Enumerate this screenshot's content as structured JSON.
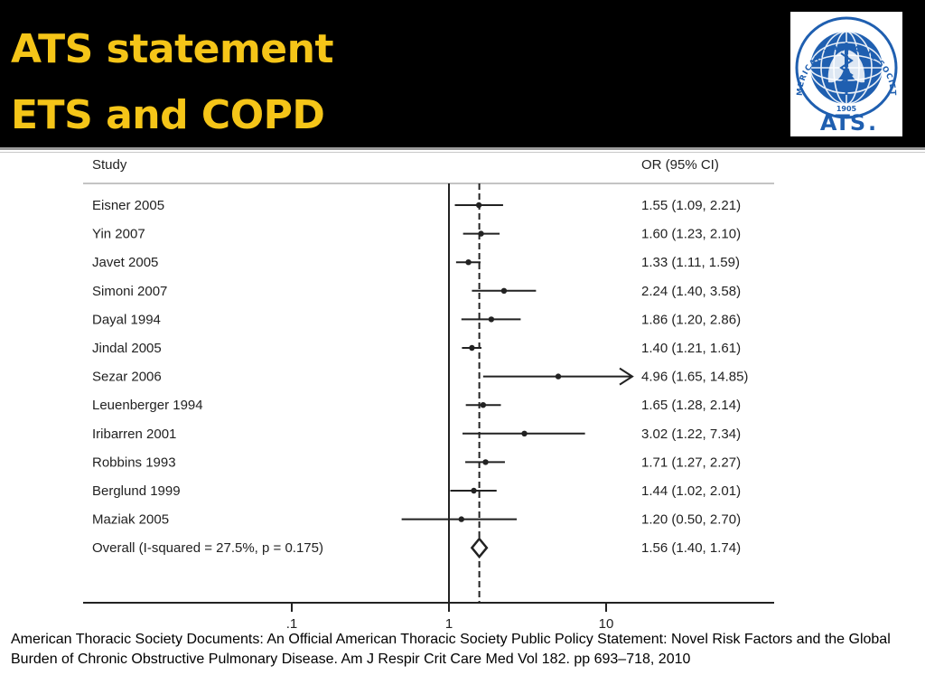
{
  "slide": {
    "title_line1": "ATS statement",
    "title_line2": "ETS and COPD",
    "citation": "American Thoracic Society Documents: An Official American Thoracic Society Public Policy Statement: Novel Risk Factors and the Global Burden of Chronic Obstructive Pulmonary Disease. Am J Respir Crit Care Med Vol 182. pp 693–718, 2010"
  },
  "logo": {
    "ring_text": "AMERICAN THORACIC SOCIETY",
    "year": "1905",
    "abbr": "ATS",
    "mark": ".",
    "color": "#1f5fb0"
  },
  "colors": {
    "header_bg": "#000000",
    "title": "#f5c518",
    "plot_ink": "#222222"
  },
  "chart_data": {
    "type": "forest",
    "column_headers": {
      "study": "Study",
      "estimate": "OR (95% CI)"
    },
    "x_scale": "log",
    "x_ticks": [
      {
        "value": 0.1,
        "label": ".1"
      },
      {
        "value": 1,
        "label": "1"
      },
      {
        "value": 10,
        "label": "10"
      }
    ],
    "null_line": 1,
    "pooled_line": 1.56,
    "studies": [
      {
        "study": "Eisner 2005",
        "or": 1.55,
        "lo": 1.09,
        "hi": 2.21,
        "label": "1.55 (1.09, 2.21)"
      },
      {
        "study": "Yin 2007",
        "or": 1.6,
        "lo": 1.23,
        "hi": 2.1,
        "label": "1.60 (1.23, 2.10)"
      },
      {
        "study": "Javet 2005",
        "or": 1.33,
        "lo": 1.11,
        "hi": 1.59,
        "label": "1.33 (1.11, 1.59)"
      },
      {
        "study": "Simoni 2007",
        "or": 2.24,
        "lo": 1.4,
        "hi": 3.58,
        "label": "2.24 (1.40, 3.58)"
      },
      {
        "study": "Dayal 1994",
        "or": 1.86,
        "lo": 1.2,
        "hi": 2.86,
        "label": "1.86 (1.20, 2.86)"
      },
      {
        "study": "Jindal 2005",
        "or": 1.4,
        "lo": 1.21,
        "hi": 1.61,
        "label": "1.40 (1.21, 1.61)"
      },
      {
        "study": "Sezar 2006",
        "or": 4.96,
        "lo": 1.65,
        "hi": 14.85,
        "label": "4.96 (1.65, 14.85)",
        "arrow": true
      },
      {
        "study": "Leuenberger 1994",
        "or": 1.65,
        "lo": 1.28,
        "hi": 2.14,
        "label": "1.65 (1.28, 2.14)"
      },
      {
        "study": "Iribarren 2001",
        "or": 3.02,
        "lo": 1.22,
        "hi": 7.34,
        "label": "3.02 (1.22, 7.34)"
      },
      {
        "study": "Robbins 1993",
        "or": 1.71,
        "lo": 1.27,
        "hi": 2.27,
        "label": "1.71 (1.27, 2.27)"
      },
      {
        "study": "Berglund 1999",
        "or": 1.44,
        "lo": 1.02,
        "hi": 2.01,
        "label": "1.44 (1.02, 2.01)"
      },
      {
        "study": "Maziak 2005",
        "or": 1.2,
        "lo": 0.5,
        "hi": 2.7,
        "label": "1.20 (0.50, 2.70)"
      }
    ],
    "overall": {
      "study": "Overall  (I-squared = 27.5%, p = 0.175)",
      "or": 1.56,
      "lo": 1.4,
      "hi": 1.74,
      "label": "1.56 (1.40, 1.74)"
    }
  }
}
